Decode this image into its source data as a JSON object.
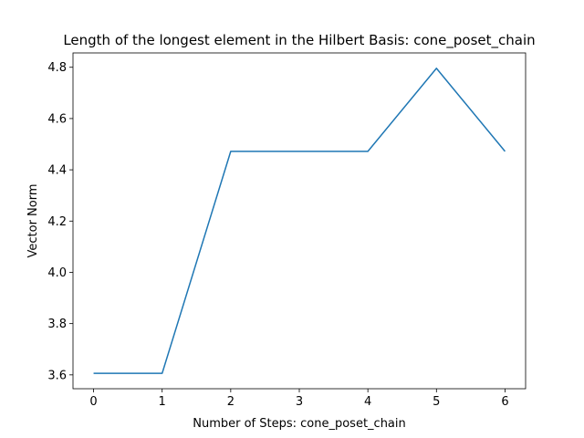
{
  "chart_data": {
    "type": "line",
    "title": "Length of the longest element in the Hilbert Basis: cone_poset_chain",
    "xlabel": "Number of Steps: cone_poset_chain",
    "ylabel": "Vector Norm",
    "x": [
      0,
      1,
      2,
      3,
      4,
      5,
      6
    ],
    "series": [
      {
        "values": [
          3.606,
          3.606,
          4.472,
          4.472,
          4.472,
          4.796,
          4.472
        ],
        "color": "#1f77b4"
      }
    ],
    "xlim": [
      -0.3,
      6.3
    ],
    "ylim": [
      3.546,
      4.856
    ],
    "xticks": [
      0,
      1,
      2,
      3,
      4,
      5,
      6
    ],
    "xtick_labels": [
      "0",
      "1",
      "2",
      "3",
      "4",
      "5",
      "6"
    ],
    "yticks": [
      3.6,
      3.8,
      4.0,
      4.2,
      4.4,
      4.6,
      4.8
    ],
    "ytick_labels": [
      "3.6",
      "3.8",
      "4.0",
      "4.2",
      "4.4",
      "4.6",
      "4.8"
    ],
    "grid": false,
    "legend": false
  }
}
